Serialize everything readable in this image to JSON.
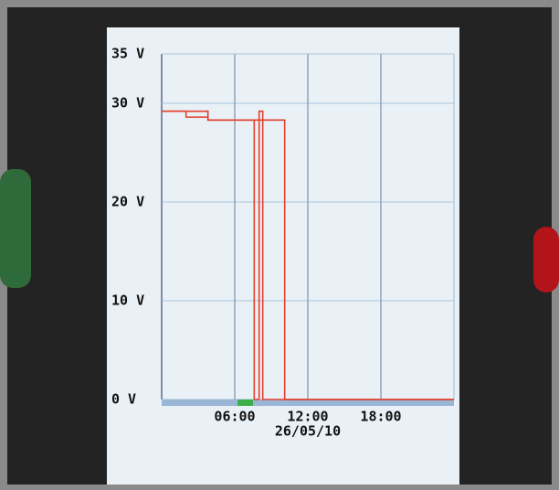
{
  "chart_data": {
    "type": "line",
    "x": [
      0,
      3.8,
      3.8,
      7.6,
      7.6,
      8.0,
      8.0,
      8.3,
      8.3,
      24
    ],
    "series": [
      {
        "color": "#e2412e",
        "x": [
          0,
          3.8,
          3.8,
          7.6,
          7.6,
          8.0,
          8.0,
          8.3,
          8.3,
          24
        ],
        "values": [
          29.2,
          29.2,
          28.3,
          28.3,
          0,
          0,
          29.2,
          29.2,
          0,
          0
        ]
      },
      {
        "color": "#e2412e",
        "x": [
          0,
          2.0,
          2.0,
          3.8,
          3.8,
          10.1,
          10.1,
          24
        ],
        "values": [
          29.2,
          29.2,
          28.6,
          28.6,
          28.3,
          28.3,
          0,
          0
        ]
      }
    ],
    "xlim": [
      0,
      24
    ],
    "xticks": [
      {
        "value": 6,
        "label": "06:00"
      },
      {
        "value": 12,
        "label": "12:00"
      },
      {
        "value": 18,
        "label": "18:00"
      }
    ],
    "x_date_label": "26/05/10",
    "ylim": [
      0,
      35
    ],
    "yticks": [
      {
        "value": 0,
        "label": "0 V"
      },
      {
        "value": 10,
        "label": "10 V"
      },
      {
        "value": 20,
        "label": "20 V"
      },
      {
        "value": 30,
        "label": "30 V"
      },
      {
        "value": 35,
        "label": "35 V"
      }
    ],
    "grid": true
  }
}
